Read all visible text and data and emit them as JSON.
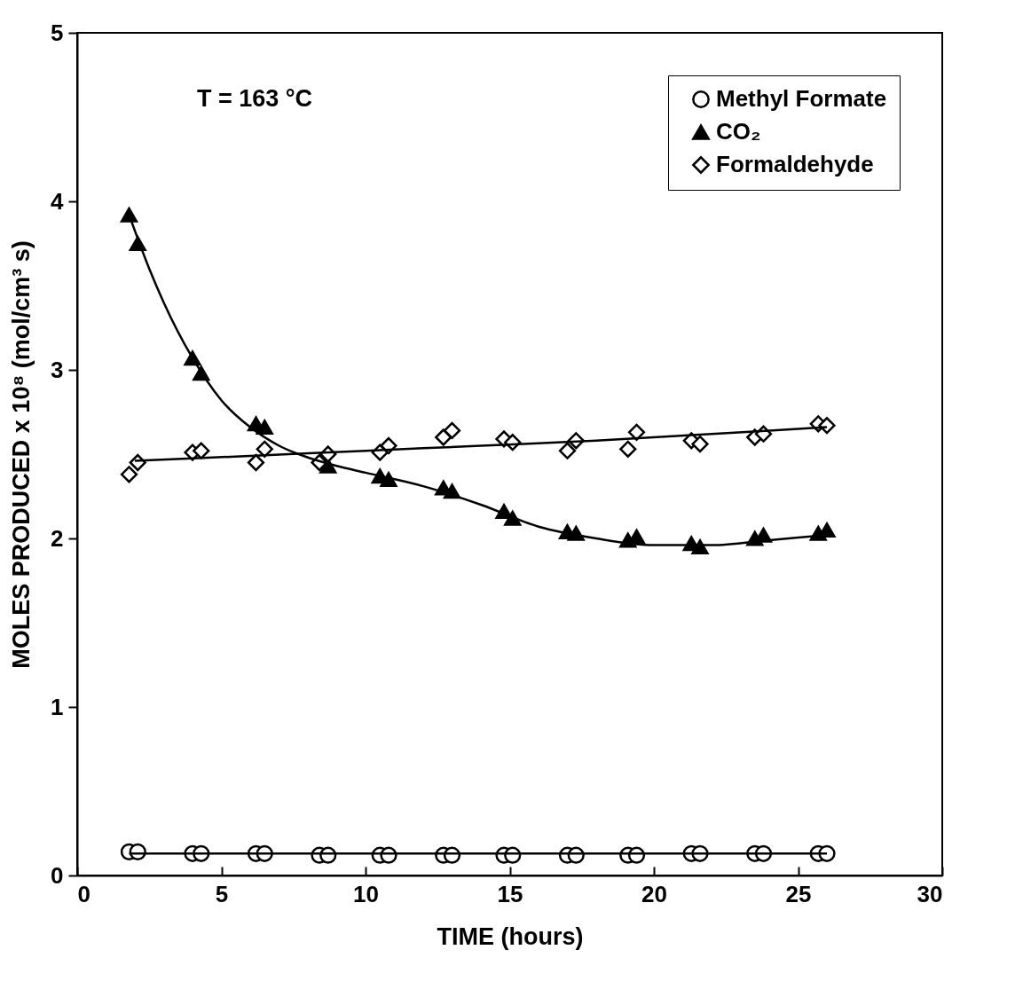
{
  "chart_data": {
    "type": "scatter",
    "xlabel": "TIME  (hours)",
    "ylabel": "MOLES PRODUCED x 10⁸ (mol/cm³ s)",
    "annotations": [
      "T = 163 °C"
    ],
    "xlim": [
      0,
      30
    ],
    "xticks": [
      0,
      5,
      10,
      15,
      20,
      25,
      30
    ],
    "ylim": [
      0,
      5
    ],
    "yticks": [
      0,
      1,
      2,
      3,
      4,
      5
    ],
    "grid": false,
    "legend": "top right",
    "series": [
      {
        "name": "Methyl Formate",
        "color": "#000000",
        "marker": "circle",
        "x": [
          1.8,
          2.1,
          4.0,
          4.3,
          6.2,
          6.5,
          8.4,
          8.7,
          10.5,
          10.8,
          12.7,
          13.0,
          14.8,
          15.1,
          17.0,
          17.3,
          19.1,
          19.4,
          21.3,
          21.6,
          23.5,
          23.8,
          25.7,
          26.0
        ],
        "values": [
          0.14,
          0.14,
          0.13,
          0.13,
          0.13,
          0.13,
          0.12,
          0.12,
          0.12,
          0.12,
          0.12,
          0.12,
          0.12,
          0.12,
          0.12,
          0.12,
          0.12,
          0.12,
          0.13,
          0.13,
          0.13,
          0.13,
          0.13,
          0.13
        ]
      },
      {
        "name": "CO₂",
        "color": "#000000",
        "marker": "triangle",
        "x": [
          1.8,
          2.1,
          4.0,
          4.3,
          6.2,
          6.5,
          8.7,
          10.5,
          10.8,
          12.7,
          13.0,
          14.8,
          15.1,
          17.0,
          17.3,
          19.1,
          19.4,
          21.3,
          21.6,
          23.5,
          23.8,
          25.7,
          26.0
        ],
        "values": [
          3.92,
          3.75,
          3.07,
          2.98,
          2.68,
          2.66,
          2.43,
          2.37,
          2.35,
          2.3,
          2.28,
          2.16,
          2.12,
          2.04,
          2.03,
          1.99,
          2.01,
          1.97,
          1.95,
          2.0,
          2.02,
          2.03,
          2.05
        ]
      },
      {
        "name": "Formaldehyde",
        "color": "#000000",
        "marker": "diamond",
        "x": [
          1.8,
          2.1,
          4.0,
          4.3,
          6.2,
          6.5,
          8.4,
          8.7,
          10.5,
          10.8,
          12.7,
          13.0,
          14.8,
          15.1,
          17.0,
          17.3,
          19.1,
          19.4,
          21.3,
          21.6,
          23.5,
          23.8,
          25.7,
          26.0
        ],
        "values": [
          2.38,
          2.45,
          2.51,
          2.52,
          2.45,
          2.53,
          2.45,
          2.5,
          2.51,
          2.55,
          2.6,
          2.64,
          2.59,
          2.57,
          2.52,
          2.58,
          2.53,
          2.63,
          2.58,
          2.56,
          2.6,
          2.62,
          2.68,
          2.67
        ]
      },
      {
        "type": "line",
        "color": "#000000",
        "line_style": "solid",
        "x": [
          1.8,
          26.0
        ],
        "values": [
          0.13,
          0.13
        ]
      },
      {
        "type": "line",
        "color": "#000000",
        "line_style": "solid",
        "x": [
          1.8,
          2.5,
          3,
          4,
          5,
          6,
          7,
          8,
          9,
          10,
          12,
          14,
          16,
          18,
          20,
          22,
          24,
          26
        ],
        "values": [
          3.92,
          3.6,
          3.4,
          3.07,
          2.82,
          2.66,
          2.55,
          2.48,
          2.43,
          2.39,
          2.31,
          2.2,
          2.07,
          2.0,
          1.96,
          1.96,
          1.99,
          2.02
        ]
      },
      {
        "type": "line",
        "color": "#000000",
        "line_style": "solid",
        "x": [
          2,
          6,
          10,
          14,
          18,
          22,
          26
        ],
        "values": [
          2.46,
          2.49,
          2.52,
          2.55,
          2.58,
          2.62,
          2.66
        ]
      }
    ]
  }
}
